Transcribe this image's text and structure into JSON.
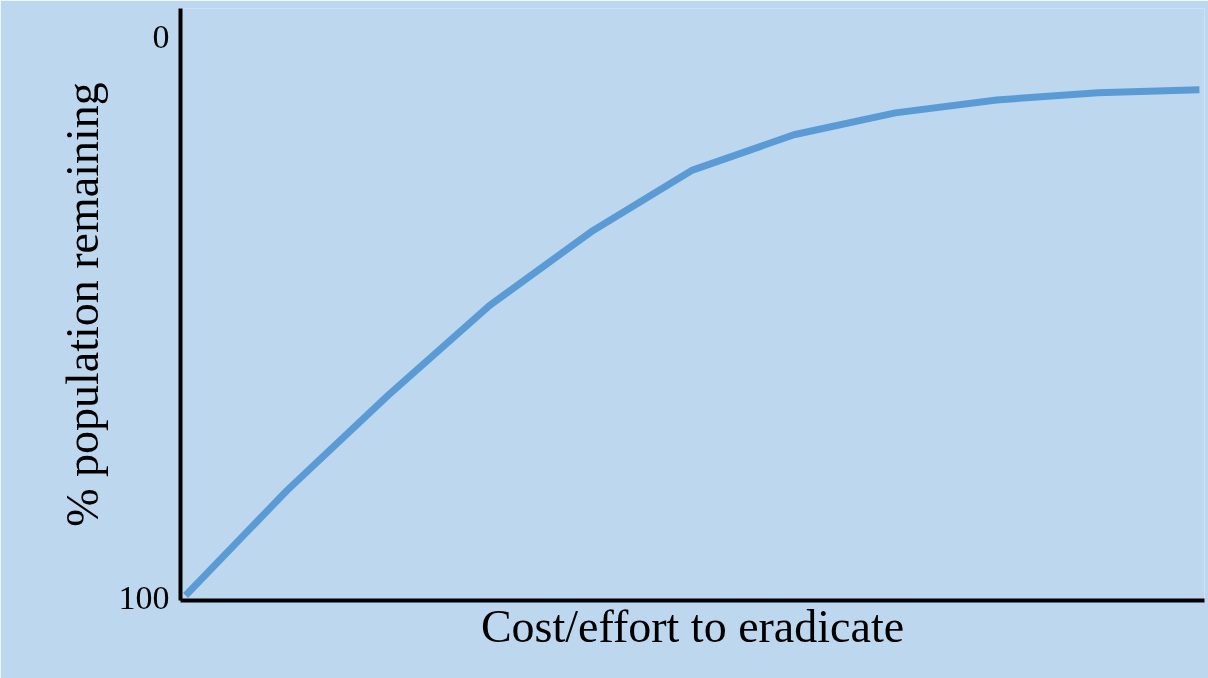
{
  "chart_data": {
    "type": "line",
    "xlabel": "Cost/effort to eradicate",
    "ylabel": "% population remaining",
    "categories": [
      null,
      null,
      null,
      null,
      null,
      null,
      null,
      null,
      null,
      null,
      null
    ],
    "series": [
      {
        "color": "#5b9bd5",
        "values": [
          99.6,
          80.9,
          63.9,
          47.9,
          34.8,
          23.8,
          17.5,
          13.6,
          11.3,
          10.0,
          9.5
        ]
      }
    ],
    "ylim": [
      100.5,
      -5
    ],
    "yticks": [
      0,
      100
    ],
    "grid": false,
    "tick_labels": "y",
    "marker": "none",
    "line_style": "solid"
  }
}
